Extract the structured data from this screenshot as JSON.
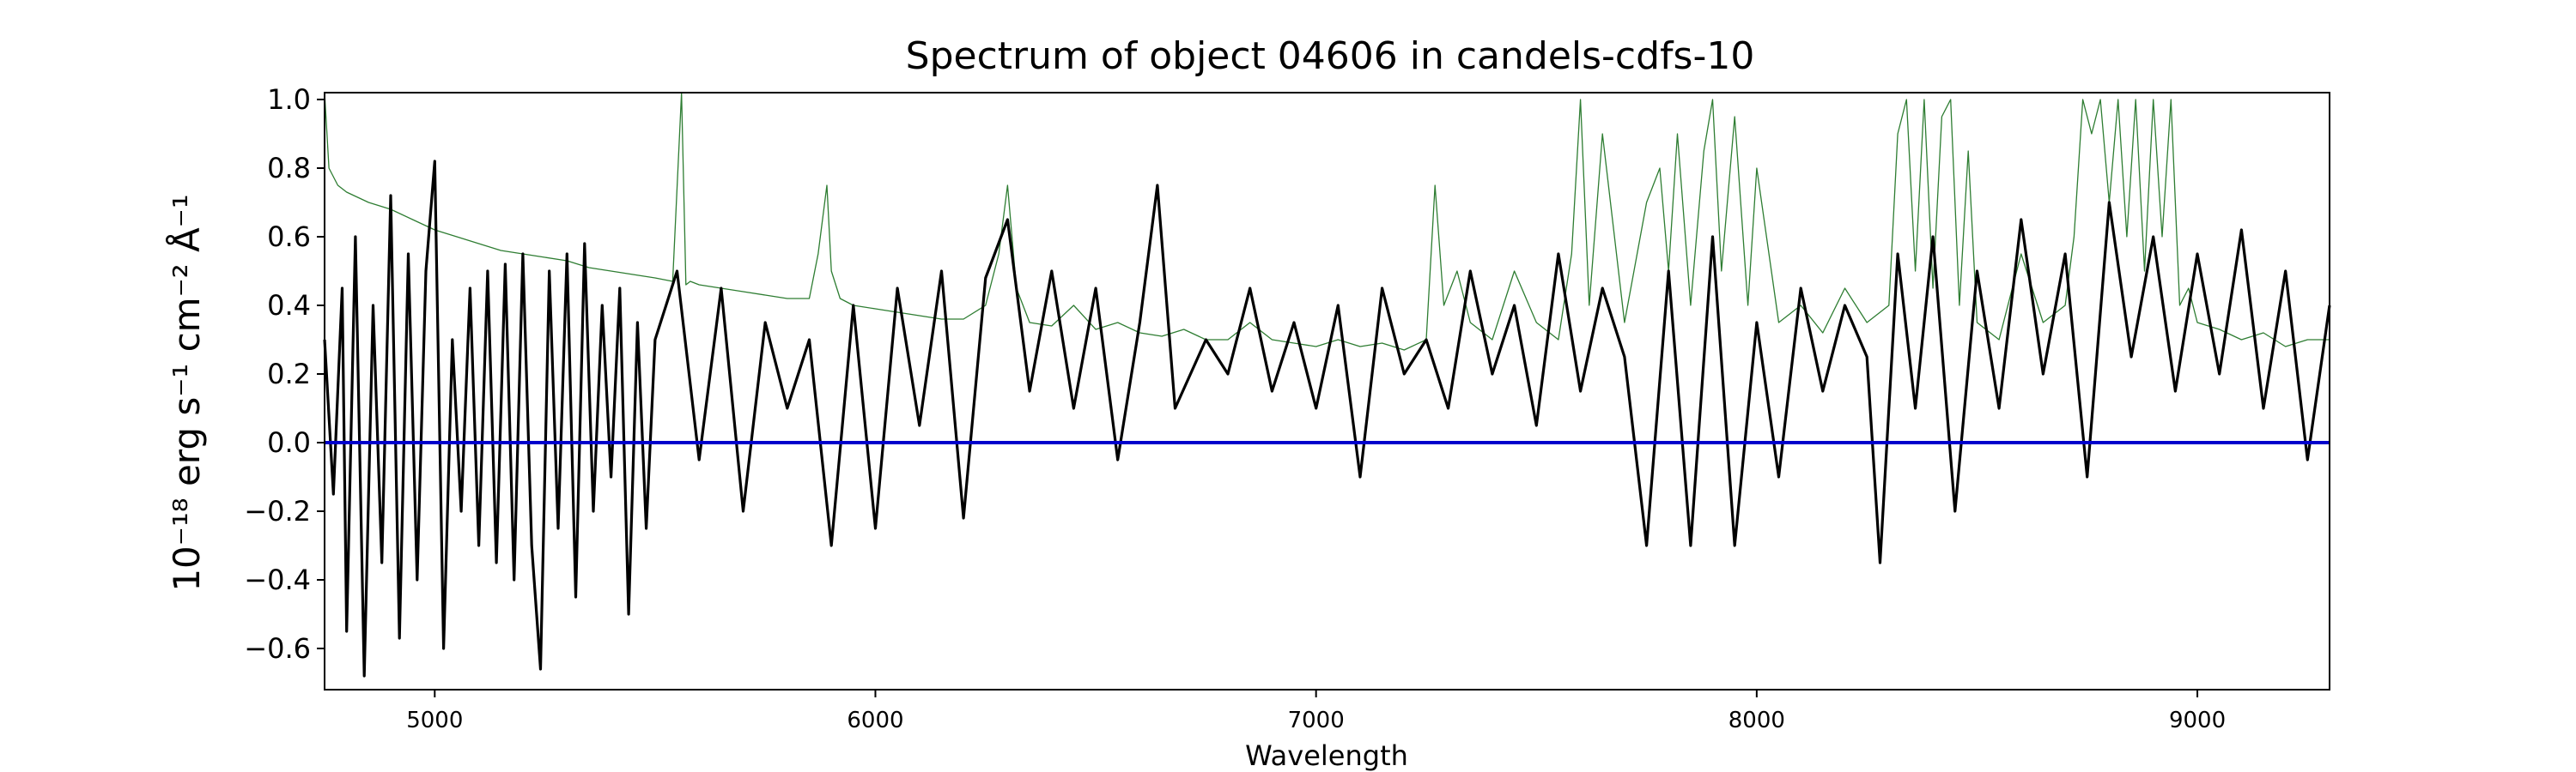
{
  "chart_data": {
    "type": "line",
    "title": "Spectrum of object 04606 in candels-cdfs-10",
    "xlabel": "Wavelength",
    "ylabel": "10⁻¹⁸ erg s⁻¹ cm⁻² Å⁻¹",
    "xlim": [
      4750,
      9300
    ],
    "ylim": [
      -0.72,
      1.02
    ],
    "x_ticks": [
      5000,
      6000,
      7000,
      8000,
      9000
    ],
    "x_tick_labels": [
      "5000",
      "6000",
      "7000",
      "8000",
      "9000"
    ],
    "y_ticks": [
      -0.6,
      -0.4,
      -0.2,
      0.0,
      0.2,
      0.4,
      0.6,
      0.8,
      1.0
    ],
    "y_tick_labels": [
      "−0.6",
      "−0.4",
      "−0.2",
      "0.0",
      "0.2",
      "0.4",
      "0.6",
      "0.8",
      "1.0"
    ],
    "grid": false,
    "legend": "none",
    "series": [
      {
        "role": "flux",
        "color": "#000000",
        "x": [
          4750,
          4770,
          4790,
          4800,
          4820,
          4840,
          4860,
          4880,
          4900,
          4920,
          4940,
          4960,
          4980,
          5000,
          5020,
          5040,
          5060,
          5080,
          5100,
          5120,
          5140,
          5160,
          5180,
          5200,
          5220,
          5240,
          5260,
          5280,
          5300,
          5320,
          5340,
          5360,
          5380,
          5400,
          5420,
          5440,
          5460,
          5480,
          5500,
          5550,
          5600,
          5650,
          5700,
          5750,
          5800,
          5850,
          5900,
          5950,
          6000,
          6050,
          6100,
          6150,
          6200,
          6250,
          6300,
          6350,
          6400,
          6450,
          6500,
          6550,
          6600,
          6640,
          6680,
          6750,
          6800,
          6850,
          6900,
          6950,
          7000,
          7050,
          7100,
          7150,
          7200,
          7250,
          7300,
          7350,
          7400,
          7450,
          7500,
          7550,
          7600,
          7650,
          7700,
          7750,
          7800,
          7850,
          7900,
          7950,
          8000,
          8050,
          8100,
          8150,
          8200,
          8250,
          8280,
          8320,
          8360,
          8400,
          8450,
          8500,
          8550,
          8600,
          8650,
          8700,
          8750,
          8800,
          8850,
          8900,
          8950,
          9000,
          9050,
          9100,
          9150,
          9200,
          9250,
          9300
        ],
        "y": [
          0.3,
          -0.15,
          0.45,
          -0.55,
          0.6,
          -0.68,
          0.4,
          -0.35,
          0.72,
          -0.57,
          0.55,
          -0.4,
          0.5,
          0.82,
          -0.6,
          0.3,
          -0.2,
          0.45,
          -0.3,
          0.5,
          -0.35,
          0.52,
          -0.4,
          0.55,
          -0.3,
          -0.66,
          0.5,
          -0.25,
          0.55,
          -0.45,
          0.58,
          -0.2,
          0.4,
          -0.1,
          0.45,
          -0.5,
          0.35,
          -0.25,
          0.3,
          0.5,
          -0.05,
          0.45,
          -0.2,
          0.35,
          0.1,
          0.3,
          -0.3,
          0.4,
          -0.25,
          0.45,
          0.05,
          0.5,
          -0.22,
          0.48,
          0.65,
          0.15,
          0.5,
          0.1,
          0.45,
          -0.05,
          0.35,
          0.75,
          0.1,
          0.3,
          0.2,
          0.45,
          0.15,
          0.35,
          0.1,
          0.4,
          -0.1,
          0.45,
          0.2,
          0.3,
          0.1,
          0.5,
          0.2,
          0.4,
          0.05,
          0.55,
          0.15,
          0.45,
          0.25,
          -0.3,
          0.5,
          -0.3,
          0.6,
          -0.3,
          0.35,
          -0.1,
          0.45,
          0.15,
          0.4,
          0.25,
          -0.35,
          0.55,
          0.1,
          0.6,
          -0.2,
          0.5,
          0.1,
          0.65,
          0.2,
          0.55,
          -0.1,
          0.7,
          0.25,
          0.6,
          0.15,
          0.55,
          0.2,
          0.62,
          0.1,
          0.5,
          -0.05,
          0.4
        ]
      },
      {
        "role": "error",
        "color": "#2e7d32",
        "x": [
          4750,
          4760,
          4780,
          4800,
          4850,
          4900,
          4950,
          5000,
          5050,
          5100,
          5150,
          5200,
          5250,
          5300,
          5350,
          5400,
          5450,
          5500,
          5540,
          5560,
          5570,
          5580,
          5600,
          5650,
          5700,
          5750,
          5800,
          5850,
          5870,
          5890,
          5900,
          5920,
          5950,
          6000,
          6050,
          6100,
          6150,
          6200,
          6250,
          6280,
          6300,
          6320,
          6350,
          6400,
          6450,
          6500,
          6550,
          6600,
          6650,
          6700,
          6750,
          6800,
          6850,
          6900,
          6950,
          7000,
          7050,
          7100,
          7150,
          7200,
          7250,
          7270,
          7290,
          7320,
          7350,
          7400,
          7450,
          7500,
          7550,
          7580,
          7600,
          7620,
          7650,
          7700,
          7750,
          7780,
          7800,
          7820,
          7850,
          7880,
          7900,
          7920,
          7950,
          7980,
          8000,
          8050,
          8100,
          8150,
          8200,
          8250,
          8300,
          8320,
          8340,
          8360,
          8380,
          8400,
          8420,
          8440,
          8460,
          8480,
          8500,
          8550,
          8600,
          8650,
          8700,
          8720,
          8740,
          8760,
          8780,
          8800,
          8820,
          8840,
          8860,
          8880,
          8900,
          8920,
          8940,
          8960,
          8980,
          9000,
          9050,
          9100,
          9150,
          9200,
          9250,
          9300
        ],
        "y": [
          1.02,
          0.8,
          0.75,
          0.73,
          0.7,
          0.68,
          0.65,
          0.62,
          0.6,
          0.58,
          0.56,
          0.55,
          0.54,
          0.53,
          0.51,
          0.5,
          0.49,
          0.48,
          0.47,
          1.02,
          0.46,
          0.47,
          0.46,
          0.45,
          0.44,
          0.43,
          0.42,
          0.42,
          0.55,
          0.75,
          0.5,
          0.42,
          0.4,
          0.39,
          0.38,
          0.37,
          0.36,
          0.36,
          0.4,
          0.55,
          0.75,
          0.45,
          0.35,
          0.34,
          0.4,
          0.33,
          0.35,
          0.32,
          0.31,
          0.33,
          0.3,
          0.3,
          0.35,
          0.3,
          0.29,
          0.28,
          0.3,
          0.28,
          0.29,
          0.27,
          0.3,
          0.75,
          0.4,
          0.5,
          0.35,
          0.3,
          0.5,
          0.35,
          0.3,
          0.55,
          1.0,
          0.4,
          0.9,
          0.35,
          0.7,
          0.8,
          0.5,
          0.9,
          0.4,
          0.85,
          1.0,
          0.5,
          0.95,
          0.4,
          0.8,
          0.35,
          0.4,
          0.32,
          0.45,
          0.35,
          0.4,
          0.9,
          1.0,
          0.5,
          1.0,
          0.45,
          0.95,
          1.0,
          0.4,
          0.85,
          0.35,
          0.3,
          0.55,
          0.35,
          0.4,
          0.6,
          1.0,
          0.9,
          1.0,
          0.7,
          1.0,
          0.6,
          1.0,
          0.5,
          1.0,
          0.6,
          1.0,
          0.4,
          0.45,
          0.35,
          0.33,
          0.3,
          0.32,
          0.28,
          0.3,
          0.3
        ]
      },
      {
        "role": "zero",
        "color": "#0000cc",
        "x": [
          4750,
          9300
        ],
        "y": [
          0.0,
          0.0
        ]
      }
    ]
  }
}
